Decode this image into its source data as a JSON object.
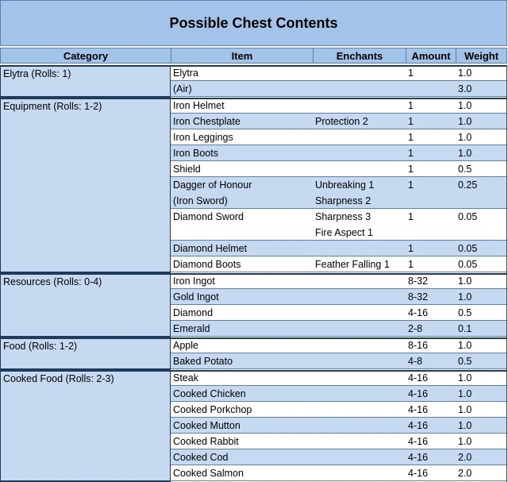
{
  "title": "Possible Chest Contents",
  "columns": [
    "Category",
    "Item",
    "Enchants",
    "Amount",
    "Weight"
  ],
  "groups": [
    {
      "category": "Elytra (Rolls: 1)",
      "rows": [
        {
          "item": [
            "Elytra"
          ],
          "enchants": [],
          "amount": "1",
          "weight": "1.0"
        },
        {
          "item": [
            "(Air)"
          ],
          "enchants": [],
          "amount": "",
          "weight": "3.0"
        }
      ]
    },
    {
      "category": "Equipment (Rolls: 1-2)",
      "rows": [
        {
          "item": [
            "Iron Helmet"
          ],
          "enchants": [],
          "amount": "1",
          "weight": "1.0"
        },
        {
          "item": [
            "Iron Chestplate"
          ],
          "enchants": [
            "Protection 2"
          ],
          "amount": "1",
          "weight": "1.0"
        },
        {
          "item": [
            "Iron Leggings"
          ],
          "enchants": [],
          "amount": "1",
          "weight": "1.0"
        },
        {
          "item": [
            "Iron Boots"
          ],
          "enchants": [],
          "amount": "1",
          "weight": "1.0"
        },
        {
          "item": [
            "Shield"
          ],
          "enchants": [],
          "amount": "1",
          "weight": "0.5"
        },
        {
          "item": [
            "Dagger of Honour",
            "(Iron Sword)"
          ],
          "enchants": [
            "Unbreaking 1",
            "Sharpness 2"
          ],
          "amount": "1",
          "weight": "0.25"
        },
        {
          "item": [
            "Diamond Sword"
          ],
          "enchants": [
            "Sharpness 3",
            "Fire Aspect 1"
          ],
          "amount": "1",
          "weight": "0.05"
        },
        {
          "item": [
            "Diamond Helmet"
          ],
          "enchants": [],
          "amount": "1",
          "weight": "0.05"
        },
        {
          "item": [
            "Diamond Boots"
          ],
          "enchants": [
            "Feather Falling 1"
          ],
          "amount": "1",
          "weight": "0.05"
        }
      ]
    },
    {
      "category": "Resources (Rolls: 0-4)",
      "rows": [
        {
          "item": [
            "Iron Ingot"
          ],
          "enchants": [],
          "amount": "8-32",
          "weight": "1.0"
        },
        {
          "item": [
            "Gold Ingot"
          ],
          "enchants": [],
          "amount": "8-32",
          "weight": "1.0"
        },
        {
          "item": [
            "Diamond"
          ],
          "enchants": [],
          "amount": "4-16",
          "weight": "0.5"
        },
        {
          "item": [
            "Emerald"
          ],
          "enchants": [],
          "amount": "2-8",
          "weight": "0.1"
        }
      ]
    },
    {
      "category": "Food (Rolls: 1-2)",
      "rows": [
        {
          "item": [
            "Apple"
          ],
          "enchants": [],
          "amount": "8-16",
          "weight": "1.0"
        },
        {
          "item": [
            "Baked Potato"
          ],
          "enchants": [],
          "amount": "4-8",
          "weight": "0.5"
        }
      ]
    },
    {
      "category": "Cooked Food (Rolls: 2-3)",
      "rows": [
        {
          "item": [
            "Steak"
          ],
          "enchants": [],
          "amount": "4-16",
          "weight": "1.0"
        },
        {
          "item": [
            "Cooked Chicken"
          ],
          "enchants": [],
          "amount": "4-16",
          "weight": "1.0"
        },
        {
          "item": [
            "Cooked Porkchop"
          ],
          "enchants": [],
          "amount": "4-16",
          "weight": "1.0"
        },
        {
          "item": [
            "Cooked Mutton"
          ],
          "enchants": [],
          "amount": "4-16",
          "weight": "1.0"
        },
        {
          "item": [
            "Cooked Rabbit"
          ],
          "enchants": [],
          "amount": "4-16",
          "weight": "1.0"
        },
        {
          "item": [
            "Cooked Cod"
          ],
          "enchants": [],
          "amount": "4-16",
          "weight": "2.0"
        },
        {
          "item": [
            "Cooked Salmon"
          ],
          "enchants": [],
          "amount": "4-16",
          "weight": "2.0"
        }
      ]
    }
  ]
}
